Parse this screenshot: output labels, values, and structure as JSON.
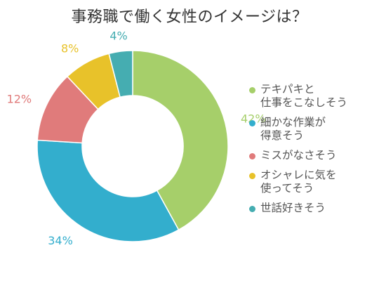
{
  "chart_data": {
    "type": "pie",
    "title": "事務職で働く女性のイメージは？",
    "donut": true,
    "categories": [
      "テキパキと\n仕事をこなしそう",
      "細かな作業が\n得意そう",
      "ミスがなさそう",
      "オシャレに気を\n使ってそう",
      "世話好きそう"
    ],
    "values": [
      42,
      34,
      12,
      8,
      4
    ],
    "value_labels": [
      "42%",
      "34%",
      "12%",
      "8%",
      "4%"
    ],
    "colors": [
      "#a6cf6a",
      "#33aecd",
      "#e07b7b",
      "#e8c22a",
      "#45adb1"
    ],
    "legend_position": "right"
  }
}
